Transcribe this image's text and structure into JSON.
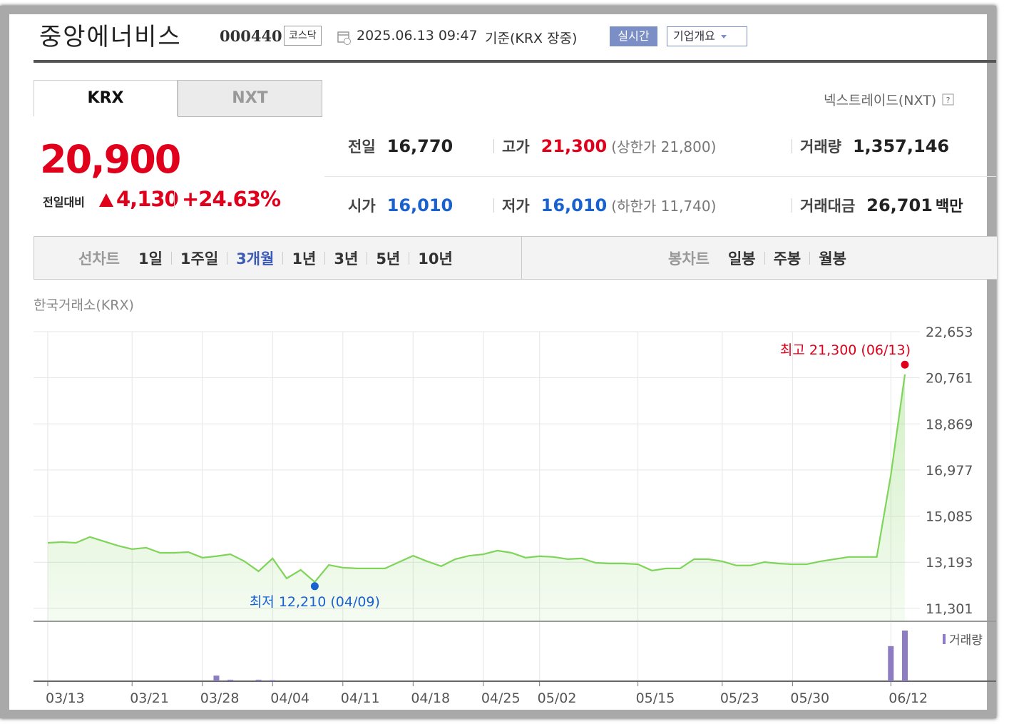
{
  "header": {
    "title": "중앙에너비스",
    "code": "000440",
    "market": "코스닥",
    "datetime": "2025.06.13 09:47",
    "basis": "기준(KRX 장중)",
    "realtime": "실시간",
    "company": "기업개요"
  },
  "tabs": [
    {
      "label": "KRX",
      "selected": true
    },
    {
      "label": "NXT"
    }
  ],
  "nxt_link": "넥스트레이드(NXT)",
  "quote": {
    "price": "20,900",
    "color": "#e0001b",
    "change": {
      "label": "전일대비",
      "value": "4,130",
      "percent": "+24.63%"
    }
  },
  "stats": [
    [
      {
        "label": "전일",
        "value": "16,770"
      },
      {
        "label": "고가",
        "value": "21,300",
        "color": "#e0001b",
        "note": "(상한가 21,800)"
      },
      {
        "label": "거래량",
        "value": "1,357,146"
      }
    ],
    [
      {
        "label": "시가",
        "value": "16,010",
        "color": "#1a61d0"
      },
      {
        "label": "저가",
        "value": "16,010",
        "color": "#1a61d0",
        "note": "(하한가 11,740)"
      },
      {
        "label": "거래대금",
        "value": "26,701",
        "unit": "백만"
      }
    ]
  ],
  "chart_tabs": {
    "line_label": "선차트",
    "periods": [
      {
        "label": "1일"
      },
      {
        "label": "1주일"
      },
      {
        "label": "3개월",
        "selected": true
      },
      {
        "label": "1년"
      },
      {
        "label": "3년"
      },
      {
        "label": "5년"
      },
      {
        "label": "10년"
      }
    ],
    "candle_label": "봉차트",
    "candle_periods": [
      "일봉",
      "주봉",
      "월봉"
    ]
  },
  "chart_data": {
    "type": "line",
    "subtitle": "한국거래소(KRX)",
    "color": "#7fd45a",
    "categories": [
      "03/13",
      null,
      null,
      null,
      null,
      null,
      "03/21",
      null,
      null,
      null,
      null,
      "03/28",
      null,
      null,
      null,
      null,
      "04/04",
      null,
      null,
      null,
      null,
      "04/11",
      null,
      null,
      null,
      null,
      "04/18",
      null,
      null,
      null,
      null,
      "04/25",
      null,
      null,
      null,
      "05/02",
      null,
      null,
      null,
      null,
      null,
      null,
      "05/15",
      null,
      null,
      null,
      null,
      null,
      "05/23",
      null,
      null,
      null,
      null,
      "05/30",
      null,
      null,
      null,
      null,
      null,
      null,
      "06/12",
      null
    ],
    "values": [
      13990,
      14020,
      13990,
      14230,
      14050,
      13870,
      13730,
      13790,
      13580,
      13580,
      13610,
      13380,
      13440,
      13520,
      13230,
      12820,
      13350,
      12530,
      12880,
      12380,
      13080,
      12970,
      12940,
      12940,
      12940,
      13200,
      13460,
      13230,
      13030,
      13320,
      13460,
      13520,
      13670,
      13580,
      13380,
      13440,
      13410,
      13320,
      13350,
      13170,
      13140,
      13140,
      13110,
      12850,
      12940,
      12940,
      13320,
      13320,
      13230,
      13060,
      13060,
      13200,
      13140,
      13110,
      13110,
      13230,
      13320,
      13410,
      13410,
      13410,
      16770,
      20900
    ],
    "ylim": [
      10770,
      22653
    ],
    "yticks": [
      {
        "value": 22653,
        "label": "22,653"
      },
      {
        "value": 20761,
        "label": "20,761"
      },
      {
        "value": 18869,
        "label": "18,869"
      },
      {
        "value": 16977,
        "label": "16,977"
      },
      {
        "value": 15085,
        "label": "15,085"
      },
      {
        "value": 13193,
        "label": "13,193"
      },
      {
        "value": 11301,
        "label": "11,301"
      }
    ],
    "grid": true,
    "annotations": [
      {
        "text": "최고 21,300 (06/13)",
        "value": 21300,
        "color": "#e0001b"
      },
      {
        "text": "최저 12,210 (04/09)",
        "value": 12210,
        "color": "#1a61d0"
      }
    ],
    "volume": {
      "name": "거래량",
      "color": "#8e7cc3",
      "ylim": [
        0,
        1567000
      ],
      "values": [
        0,
        0,
        0,
        0,
        0,
        0,
        0,
        0,
        0,
        0,
        0,
        0,
        150000,
        40000,
        0,
        40000,
        30000,
        0,
        0,
        0,
        0,
        0,
        0,
        0,
        0,
        0,
        0,
        0,
        0,
        0,
        0,
        0,
        0,
        0,
        0,
        0,
        0,
        0,
        0,
        0,
        0,
        0,
        0,
        0,
        0,
        0,
        0,
        0,
        0,
        0,
        0,
        0,
        0,
        0,
        0,
        0,
        0,
        0,
        0,
        0,
        940000,
        1357146
      ]
    }
  }
}
